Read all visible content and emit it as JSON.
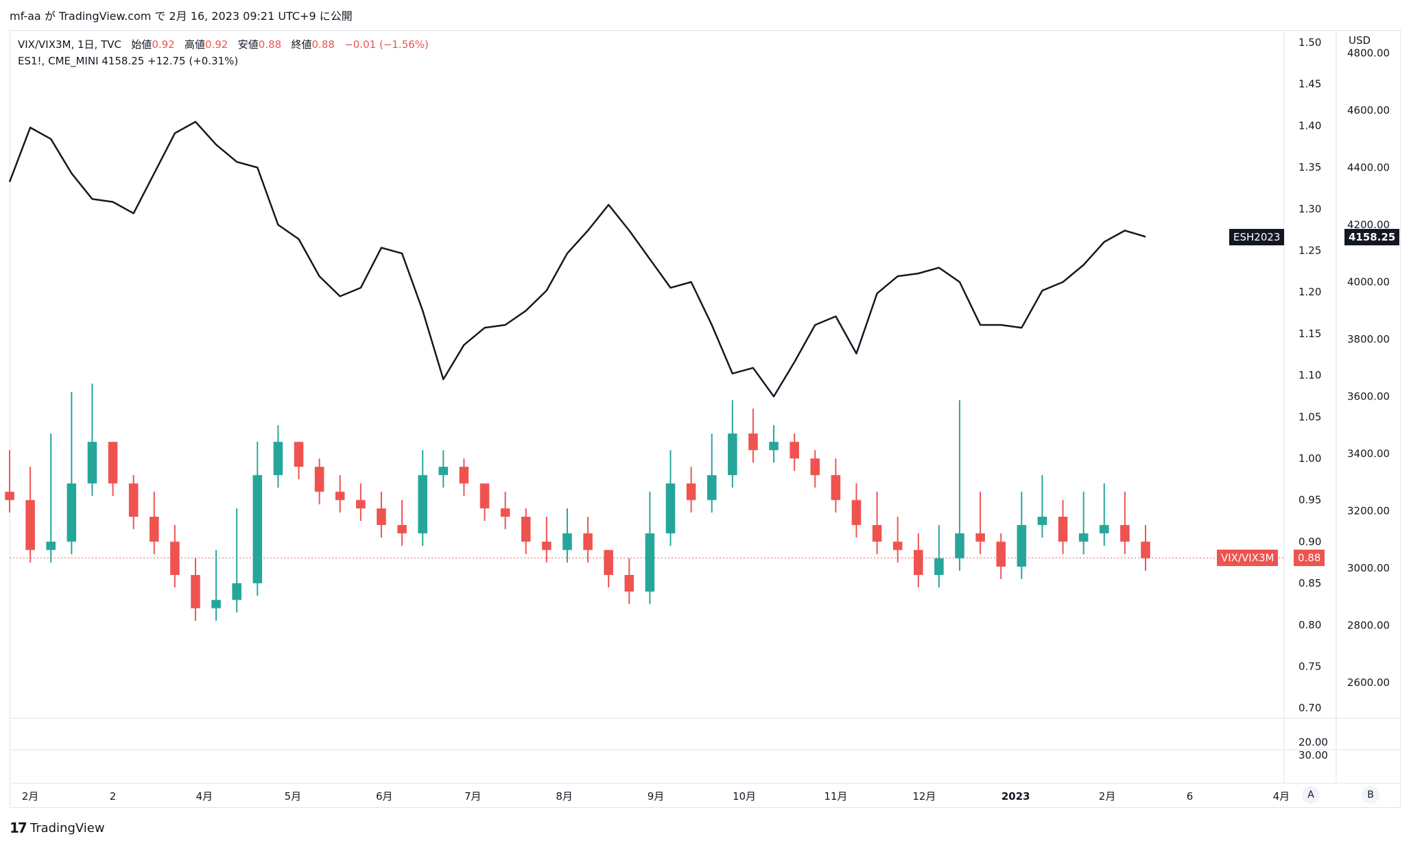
{
  "header": {
    "publish_line": "mf-aa が TradingView.com で 2月 16, 2023 09:21 UTC+9 に公開"
  },
  "legend": {
    "vix": {
      "symbol_info": "VIX/VIX3M, 1日, TVC",
      "open_label": "始値",
      "open_value": "0.92",
      "high_label": "高値",
      "high_value": "0.92",
      "low_label": "安値",
      "low_value": "0.88",
      "close_label": "終値",
      "close_value": "0.88",
      "change": "−0.01 (−1.56%)"
    },
    "es": {
      "symbol_info": "ES1!, CME_MINI  4158.25  +12.75 (+0.31%)"
    }
  },
  "axis": {
    "currency": "USD",
    "ratio_ticks": [
      "1.50",
      "1.45",
      "1.40",
      "1.35",
      "1.30",
      "1.25",
      "1.20",
      "1.15",
      "1.10",
      "1.05",
      "1.00",
      "0.95",
      "0.90",
      "0.85",
      "0.80",
      "0.75",
      "0.70"
    ],
    "price_ticks": [
      "4800.00",
      "4600.00",
      "4400.00",
      "4200.00",
      "4000.00",
      "3800.00",
      "3600.00",
      "3400.00",
      "3200.00",
      "3000.00",
      "2800.00",
      "2600.00"
    ],
    "pane2_ticks": [
      "20.00",
      "30.00"
    ],
    "time_labels": [
      "2月",
      "2",
      "4月",
      "5月",
      "6月",
      "7月",
      "8月",
      "9月",
      "10月",
      "11月",
      "12月",
      "2023",
      "2月",
      "6",
      "4月"
    ]
  },
  "badges": {
    "es_name": "ESH2023",
    "es_price": "4158.25",
    "vix_name": "VIX/VIX3M",
    "vix_price": "0.88"
  },
  "buttons": {
    "a": "A",
    "b": "B"
  },
  "footer": {
    "brand": "TradingView",
    "logo": "17"
  },
  "colors": {
    "up": "#26a69a",
    "down": "#ef5350",
    "line": "#131722"
  },
  "chart_data": [
    {
      "type": "line",
      "title": "ES1!, CME_MINI",
      "axis": "right (USD)",
      "ylim": [
        2400,
        4800
      ],
      "x": [
        "2022-01-25",
        "2022-02-01",
        "2022-02-08",
        "2022-02-15",
        "2022-02-22",
        "2022-03-01",
        "2022-03-08",
        "2022-03-15",
        "2022-03-22",
        "2022-03-29",
        "2022-04-05",
        "2022-04-12",
        "2022-04-19",
        "2022-04-26",
        "2022-05-03",
        "2022-05-10",
        "2022-05-17",
        "2022-05-24",
        "2022-05-31",
        "2022-06-07",
        "2022-06-14",
        "2022-06-21",
        "2022-06-28",
        "2022-07-05",
        "2022-07-12",
        "2022-07-19",
        "2022-07-26",
        "2022-08-02",
        "2022-08-09",
        "2022-08-16",
        "2022-08-23",
        "2022-08-30",
        "2022-09-06",
        "2022-09-13",
        "2022-09-20",
        "2022-09-27",
        "2022-10-04",
        "2022-10-11",
        "2022-10-18",
        "2022-10-25",
        "2022-11-01",
        "2022-11-08",
        "2022-11-15",
        "2022-11-22",
        "2022-11-29",
        "2022-12-06",
        "2022-12-13",
        "2022-12-20",
        "2022-12-27",
        "2023-01-03",
        "2023-01-10",
        "2023-01-17",
        "2023-01-24",
        "2023-01-31",
        "2023-02-07",
        "2023-02-14"
      ],
      "values": [
        4350,
        4540,
        4500,
        4380,
        4290,
        4280,
        4240,
        4380,
        4520,
        4560,
        4480,
        4420,
        4400,
        4200,
        4150,
        4020,
        3950,
        3980,
        4120,
        4100,
        3900,
        3660,
        3780,
        3840,
        3850,
        3900,
        3970,
        4100,
        4180,
        4270,
        4180,
        4080,
        3980,
        4000,
        3850,
        3680,
        3700,
        3600,
        3720,
        3850,
        3880,
        3750,
        3960,
        4020,
        4030,
        4050,
        4000,
        3850,
        3850,
        3840,
        3970,
        4000,
        4060,
        4140,
        4180,
        4158.25
      ]
    },
    {
      "type": "candlestick",
      "title": "VIX/VIX3M, 1日, TVC",
      "axis": "left (ratio)",
      "ylim": [
        0.7,
        1.5
      ],
      "x": [
        "2022-01-25",
        "2022-02-01",
        "2022-02-08",
        "2022-02-15",
        "2022-02-22",
        "2022-03-01",
        "2022-03-08",
        "2022-03-15",
        "2022-03-22",
        "2022-03-29",
        "2022-04-05",
        "2022-04-12",
        "2022-04-19",
        "2022-04-26",
        "2022-05-03",
        "2022-05-10",
        "2022-05-17",
        "2022-05-24",
        "2022-05-31",
        "2022-06-07",
        "2022-06-14",
        "2022-06-21",
        "2022-06-28",
        "2022-07-05",
        "2022-07-12",
        "2022-07-19",
        "2022-07-26",
        "2022-08-02",
        "2022-08-09",
        "2022-08-16",
        "2022-08-23",
        "2022-08-30",
        "2022-09-06",
        "2022-09-13",
        "2022-09-20",
        "2022-09-27",
        "2022-10-04",
        "2022-10-11",
        "2022-10-18",
        "2022-10-25",
        "2022-11-01",
        "2022-11-08",
        "2022-11-15",
        "2022-11-22",
        "2022-11-29",
        "2022-12-06",
        "2022-12-13",
        "2022-12-20",
        "2022-12-27",
        "2023-01-03",
        "2023-01-10",
        "2023-01-17",
        "2023-01-24",
        "2023-01-31",
        "2023-02-07",
        "2023-02-14"
      ],
      "close": [
        0.95,
        0.89,
        0.9,
        0.97,
        1.02,
        0.97,
        0.93,
        0.9,
        0.86,
        0.82,
        0.83,
        0.85,
        0.98,
        1.02,
        0.99,
        0.96,
        0.95,
        0.94,
        0.92,
        0.91,
        0.98,
        0.99,
        0.97,
        0.94,
        0.93,
        0.9,
        0.89,
        0.91,
        0.89,
        0.86,
        0.84,
        0.91,
        0.97,
        0.95,
        0.98,
        1.03,
        1.01,
        1.02,
        1.0,
        0.98,
        0.95,
        0.92,
        0.9,
        0.89,
        0.86,
        0.88,
        0.91,
        0.9,
        0.87,
        0.92,
        0.93,
        0.9,
        0.91,
        0.92,
        0.9,
        0.88
      ],
      "high": [
        1.01,
        0.99,
        1.03,
        1.08,
        1.09,
        1.02,
        0.98,
        0.96,
        0.92,
        0.88,
        0.89,
        0.94,
        1.02,
        1.04,
        1.02,
        1.0,
        0.98,
        0.97,
        0.96,
        0.95,
        1.01,
        1.01,
        1.0,
        0.97,
        0.96,
        0.94,
        0.93,
        0.94,
        0.93,
        0.89,
        0.88,
        0.96,
        1.01,
        0.99,
        1.03,
        1.07,
        1.06,
        1.04,
        1.03,
        1.01,
        1.0,
        0.97,
        0.96,
        0.93,
        0.91,
        0.92,
        1.07,
        0.96,
        0.91,
        0.96,
        0.98,
        0.95,
        0.96,
        0.97,
        0.96,
        0.92
      ]
    }
  ]
}
